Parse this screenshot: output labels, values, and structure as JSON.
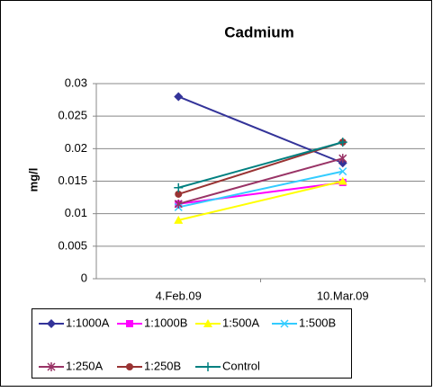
{
  "chart_data": {
    "type": "line",
    "title": "Cadmium",
    "y_label": "mg/l",
    "categories": [
      "4.Feb.09",
      "10.Mar.09"
    ],
    "ylim": [
      0,
      0.03
    ],
    "yticks": [
      0,
      0.005,
      0.01,
      0.015,
      0.02,
      0.025,
      0.03
    ],
    "grid": true,
    "series": [
      {
        "name": "1:1000A",
        "color": "#333399",
        "marker": "diamond",
        "values": [
          0.028,
          0.0178
        ]
      },
      {
        "name": "1:1000B",
        "color": "#FF00FF",
        "marker": "square",
        "values": [
          0.0115,
          0.0148
        ]
      },
      {
        "name": "1:500A",
        "color": "#FFFF00",
        "marker": "triangle",
        "values": [
          0.009,
          0.015
        ]
      },
      {
        "name": "1:500B",
        "color": "#33CCFF",
        "marker": "x",
        "values": [
          0.011,
          0.0165
        ]
      },
      {
        "name": "1:250A",
        "color": "#993366",
        "marker": "star",
        "values": [
          0.0115,
          0.0185
        ]
      },
      {
        "name": "1:250B",
        "color": "#993333",
        "marker": "circle",
        "values": [
          0.013,
          0.021
        ]
      },
      {
        "name": "Control",
        "color": "#008080",
        "marker": "plus",
        "values": [
          0.014,
          0.021
        ]
      }
    ]
  }
}
